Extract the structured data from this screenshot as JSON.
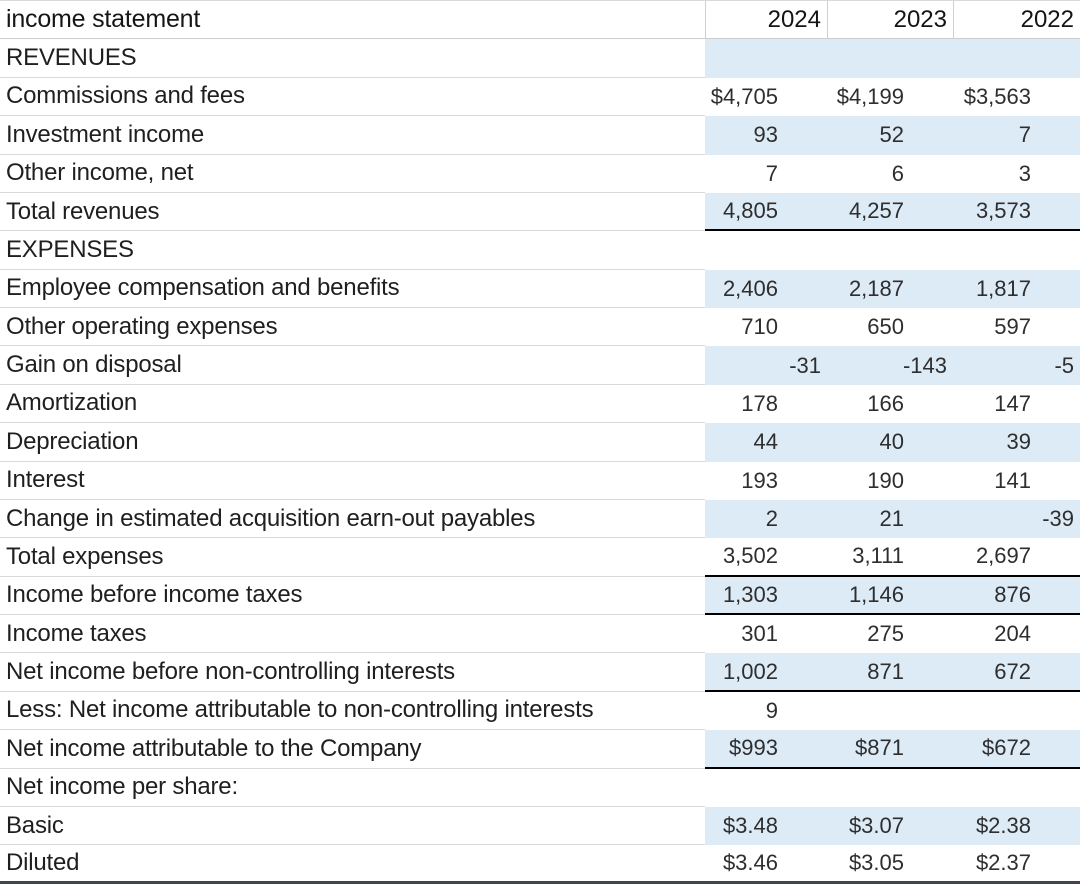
{
  "table": {
    "title": "income statement",
    "columns": [
      "2024",
      "2023",
      "2022"
    ],
    "rows": [
      {
        "label": "REVENUES",
        "values": [
          "",
          "",
          ""
        ],
        "fill": true
      },
      {
        "label": "Commissions and fees",
        "values": [
          "$4,705",
          "$4,199",
          "$3,563"
        ],
        "fill": false
      },
      {
        "label": "Investment income",
        "values": [
          "93",
          "52",
          "7"
        ],
        "fill": true
      },
      {
        "label": "Other income, net",
        "values": [
          "7",
          "6",
          "3"
        ],
        "fill": false
      },
      {
        "label": "Total revenues",
        "values": [
          "4,805",
          "4,257",
          "3,573"
        ],
        "fill": true,
        "total_border": true
      },
      {
        "label": "EXPENSES",
        "values": [
          "",
          "",
          ""
        ],
        "fill": false
      },
      {
        "label": "Employee compensation and benefits",
        "values": [
          "2,406",
          "2,187",
          "1,817"
        ],
        "fill": true
      },
      {
        "label": "Other operating expenses",
        "values": [
          "710",
          "650",
          "597"
        ],
        "fill": false
      },
      {
        "label": "Gain on disposal",
        "values": [
          "-31",
          "-143",
          "-5"
        ],
        "fill": true
      },
      {
        "label": "Amortization",
        "values": [
          "178",
          "166",
          "147"
        ],
        "fill": false
      },
      {
        "label": "Depreciation",
        "values": [
          "44",
          "40",
          "39"
        ],
        "fill": true
      },
      {
        "label": "Interest",
        "values": [
          "193",
          "190",
          "141"
        ],
        "fill": false
      },
      {
        "label": "Change in estimated acquisition earn-out payables",
        "values": [
          "2",
          "21",
          "-39"
        ],
        "fill": true
      },
      {
        "label": "Total expenses",
        "values": [
          "3,502",
          "3,111",
          "2,697"
        ],
        "fill": false,
        "total_border": true
      },
      {
        "label": "Income before income taxes",
        "values": [
          "1,303",
          "1,146",
          "876"
        ],
        "fill": true,
        "total_border": true
      },
      {
        "label": "Income taxes",
        "values": [
          "301",
          "275",
          "204"
        ],
        "fill": false
      },
      {
        "label": "Net income before non-controlling interests",
        "values": [
          "1,002",
          "871",
          "672"
        ],
        "fill": true,
        "total_border": true
      },
      {
        "label": "Less: Net income attributable to non-controlling interests",
        "values": [
          "9",
          "",
          ""
        ],
        "fill": false
      },
      {
        "label": "Net income attributable to the Company",
        "values": [
          "$993",
          "$871",
          "$672"
        ],
        "fill": true,
        "total_border": true
      },
      {
        "label": "Net income per share:",
        "values": [
          "",
          "",
          ""
        ],
        "fill": false
      },
      {
        "label": "Basic",
        "values": [
          "$3.48",
          "$3.07",
          "$2.38"
        ],
        "fill": true
      },
      {
        "label": "Diluted",
        "values": [
          "$3.46",
          "$3.05",
          "$2.37"
        ],
        "fill": false
      }
    ],
    "colors": {
      "row_fill_blue": "#DDEBF7",
      "grid_line": "#D9D9D9",
      "section_border": "#000000",
      "table_bottom_border": "#3E4450"
    }
  }
}
